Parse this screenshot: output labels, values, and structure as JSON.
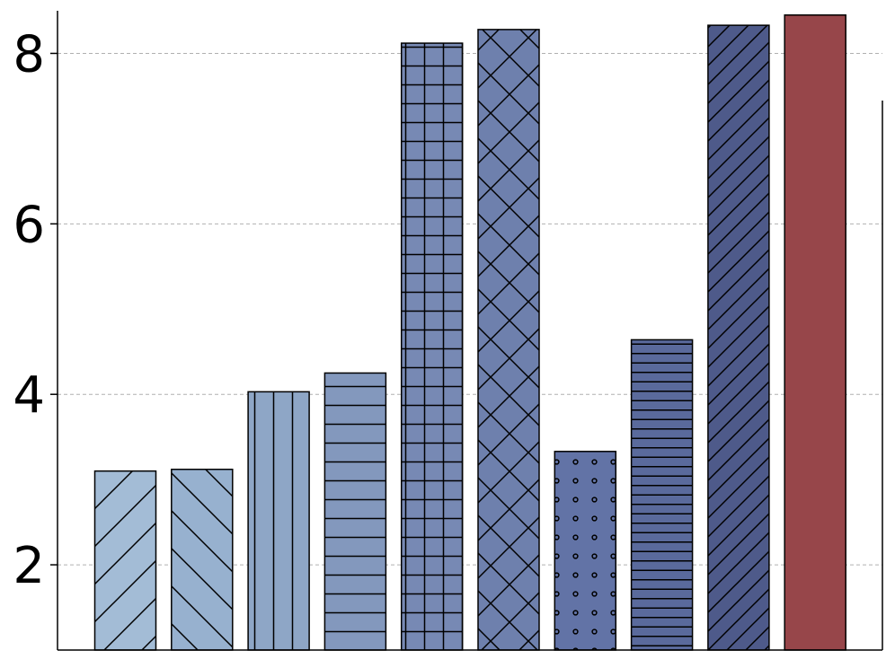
{
  "chart_data": {
    "type": "bar",
    "title": "",
    "xlabel": "",
    "ylabel": "",
    "ylim": [
      1,
      8.5
    ],
    "yticks": [
      2,
      4,
      6,
      8
    ],
    "grid": "y-dashed",
    "categories": [
      "",
      "",
      "",
      "",
      "",
      "",
      "",
      "",
      "",
      ""
    ],
    "values": [
      3.1,
      3.12,
      4.03,
      4.25,
      8.12,
      8.28,
      3.33,
      4.64,
      8.33,
      8.45
    ],
    "colors": [
      "#a3bcd6",
      "#97b1cf",
      "#8ea6c6",
      "#8398bd",
      "#7789b4",
      "#6e80ad",
      "#6273a6",
      "#5a6a9c",
      "#4e5a8a",
      "#97464a"
    ],
    "patterns": [
      "slash",
      "backslash",
      "vertical",
      "horizontal",
      "grid",
      "cross",
      "dots",
      "dense-horizontal",
      "dense-slash",
      "none"
    ]
  }
}
